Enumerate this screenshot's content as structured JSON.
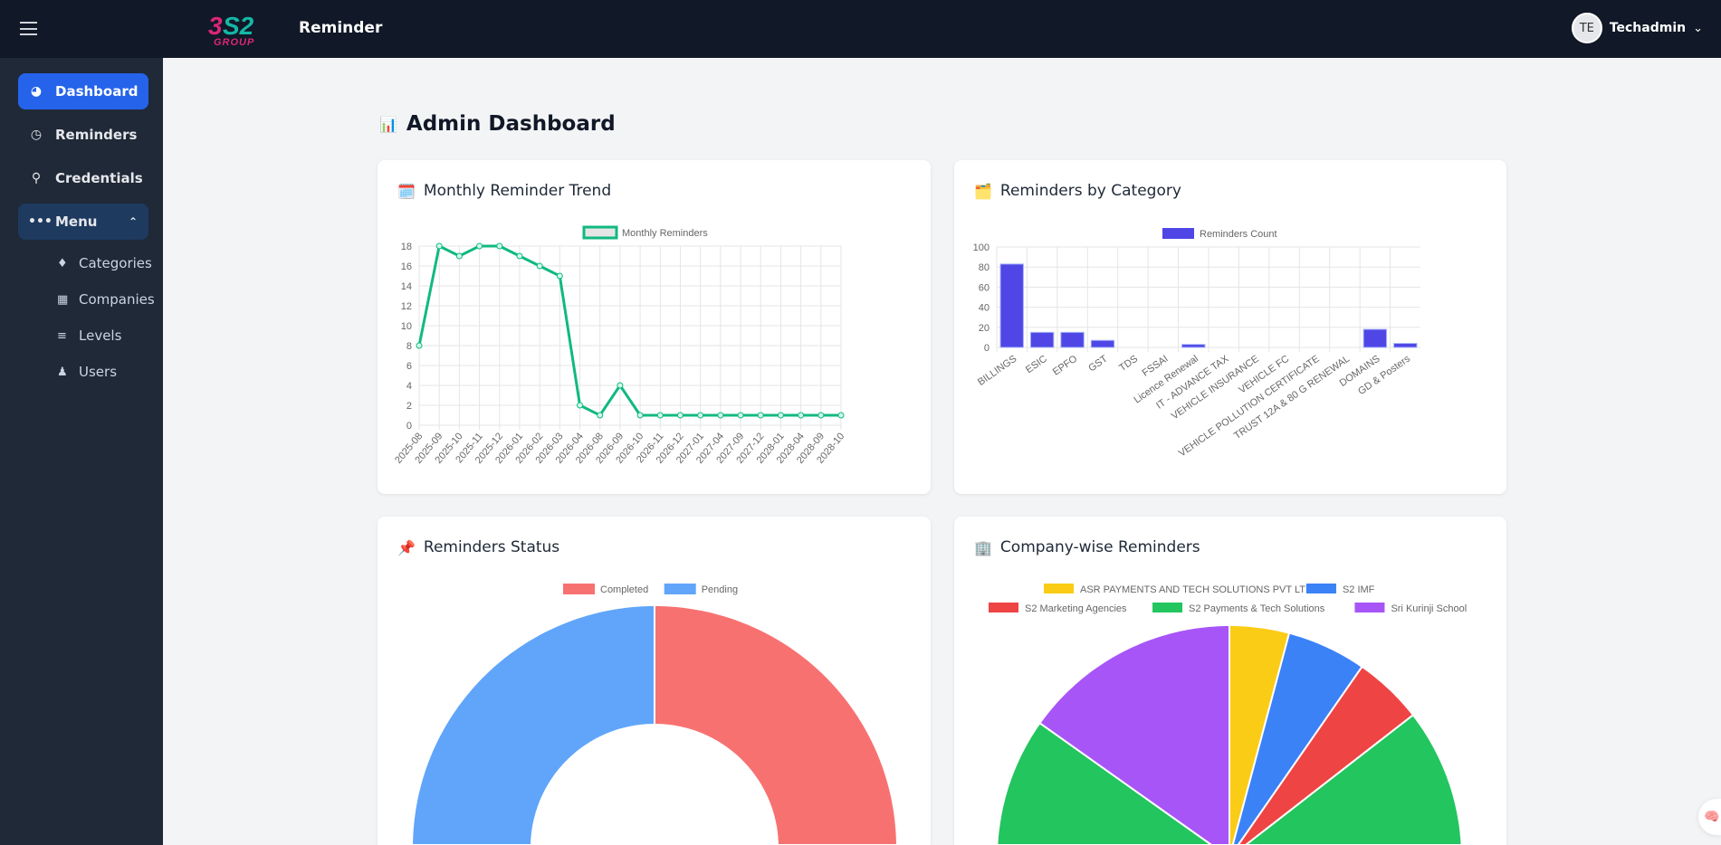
{
  "header": {
    "app_title": "Reminder",
    "logo_text": "S2 GROUP",
    "user_initials": "TE",
    "user_name": "Techadmin"
  },
  "sidebar": {
    "items": [
      {
        "label": "Dashboard",
        "icon": "gauge-icon",
        "active": true
      },
      {
        "label": "Reminders",
        "icon": "clock-icon"
      },
      {
        "label": "Credentials",
        "icon": "key-icon"
      },
      {
        "label": "Menu",
        "icon": "ellipsis-icon",
        "expanded": true
      }
    ],
    "sub_items": [
      {
        "label": "Categories",
        "icon": "tags-icon"
      },
      {
        "label": "Companies",
        "icon": "building-icon"
      },
      {
        "label": "Levels",
        "icon": "sliders-icon"
      },
      {
        "label": "Users",
        "icon": "users-icon"
      }
    ]
  },
  "page": {
    "title": "Admin Dashboard"
  },
  "cards": {
    "trend": "Monthly Reminder Trend",
    "category": "Reminders by Category",
    "status": "Reminders Status",
    "company": "Company-wise Reminders"
  },
  "chart_data": [
    {
      "type": "line",
      "legend": [
        "Monthly Reminders"
      ],
      "color": "#10b981",
      "ylim": [
        0,
        18
      ],
      "yticks": [
        0,
        2,
        4,
        6,
        8,
        10,
        12,
        14,
        16,
        18
      ],
      "grid": true,
      "legend_placement": "top",
      "categories": [
        "2025-08",
        "2025-09",
        "2025-10",
        "2025-11",
        "2025-12",
        "2026-01",
        "2026-02",
        "2026-03",
        "2026-04",
        "2026-08",
        "2026-09",
        "2026-10",
        "2026-11",
        "2026-12",
        "2027-01",
        "2027-04",
        "2027-09",
        "2027-12",
        "2028-01",
        "2028-04",
        "2028-09",
        "2028-10"
      ],
      "series": [
        {
          "name": "Monthly Reminders",
          "values": [
            8,
            18,
            17,
            18,
            18,
            17,
            16,
            15,
            2,
            1,
            4,
            1,
            1,
            1,
            1,
            1,
            1,
            1,
            1,
            1,
            1,
            1
          ]
        }
      ]
    },
    {
      "type": "bar",
      "legend": [
        "Reminders Count"
      ],
      "color": "#4f46e5",
      "ylim": [
        0,
        100
      ],
      "yticks": [
        0,
        20,
        40,
        60,
        80,
        100
      ],
      "grid": true,
      "legend_placement": "top",
      "categories": [
        "BILLINGS",
        "ESIC",
        "EPFO",
        "GST",
        "TDS",
        "FSSAI",
        "Licence Renewal",
        "IT - ADVANCE TAX",
        "VEHICLE INSURANCE",
        "VEHICLE FC",
        "VEHICLE POLLUTION CERTIFICATE",
        "TRUST 12A & 80 G RENEWAL",
        "DOMAINS",
        "GD & Posters"
      ],
      "series": [
        {
          "name": "Reminders Count",
          "values": [
            83,
            15,
            15,
            7,
            0,
            0,
            3,
            0,
            0,
            0,
            0,
            0,
            18,
            4
          ]
        }
      ]
    },
    {
      "type": "pie",
      "subtype": "doughnut",
      "legend_placement": "top",
      "labels": [
        "Completed",
        "Pending"
      ],
      "values": [
        73,
        72
      ],
      "colors": [
        "#f87171",
        "#60a5fa"
      ]
    },
    {
      "type": "pie",
      "legend_placement": "top",
      "labels": [
        "ASR PAYMENTS AND TECH SOLUTIONS PVT LTD",
        "S2 IMF",
        "S2 Marketing Agencies",
        "S2 Payments & Tech Solutions",
        "Sri Kurinji School"
      ],
      "values": [
        6,
        8,
        7,
        102,
        22
      ],
      "colors": [
        "#facc15",
        "#3b82f6",
        "#ef4444",
        "#22c55e",
        "#a855f7"
      ]
    }
  ]
}
